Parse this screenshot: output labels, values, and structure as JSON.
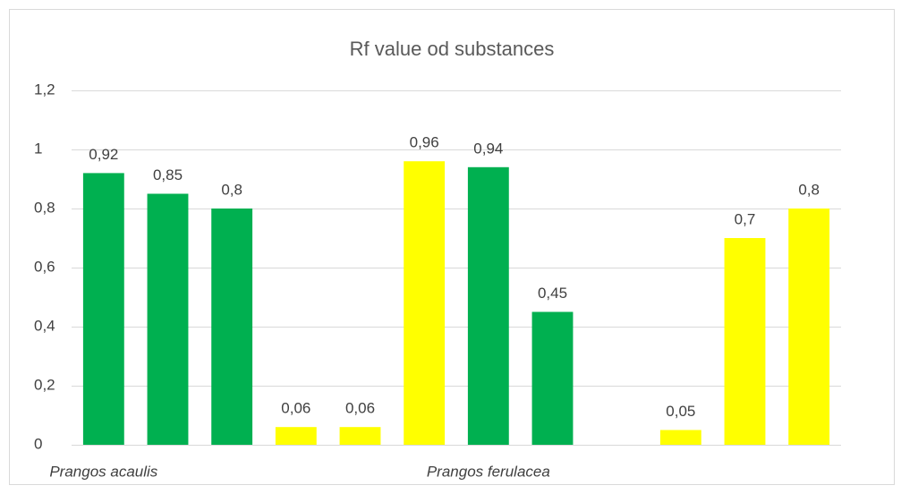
{
  "chart_data": {
    "type": "bar",
    "title": "Rf value od substances",
    "categories": [
      "Prangos acaulis",
      null,
      null,
      null,
      null,
      null,
      "Prangos ferulacea",
      null,
      null,
      null,
      null,
      null
    ],
    "values": [
      0.92,
      0.85,
      0.8,
      0.06,
      0.06,
      0.96,
      0.94,
      0.45,
      null,
      0.05,
      0.7,
      0.8
    ],
    "value_labels": [
      "0,92",
      "0,85",
      "0,8",
      "0,06",
      "0,06",
      "0,96",
      "0,94",
      "0,45",
      null,
      "0,05",
      "0,7",
      "0,8"
    ],
    "colors": [
      "#00b050",
      "#00b050",
      "#00b050",
      "#ffff00",
      "#ffff00",
      "#ffff00",
      "#00b050",
      "#00b050",
      null,
      "#ffff00",
      "#ffff00",
      "#ffff00"
    ],
    "ylim": [
      0,
      1.2
    ],
    "yticks": [
      0,
      {
        "value": 0.2,
        "label": "0,2"
      },
      {
        "value": 0.4,
        "label": "0,4"
      },
      {
        "value": 0.6,
        "label": "0,6"
      },
      {
        "value": 0.8,
        "label": "0,8"
      },
      1,
      {
        "value": 1.2,
        "label": "1,2"
      }
    ],
    "grid": true
  }
}
